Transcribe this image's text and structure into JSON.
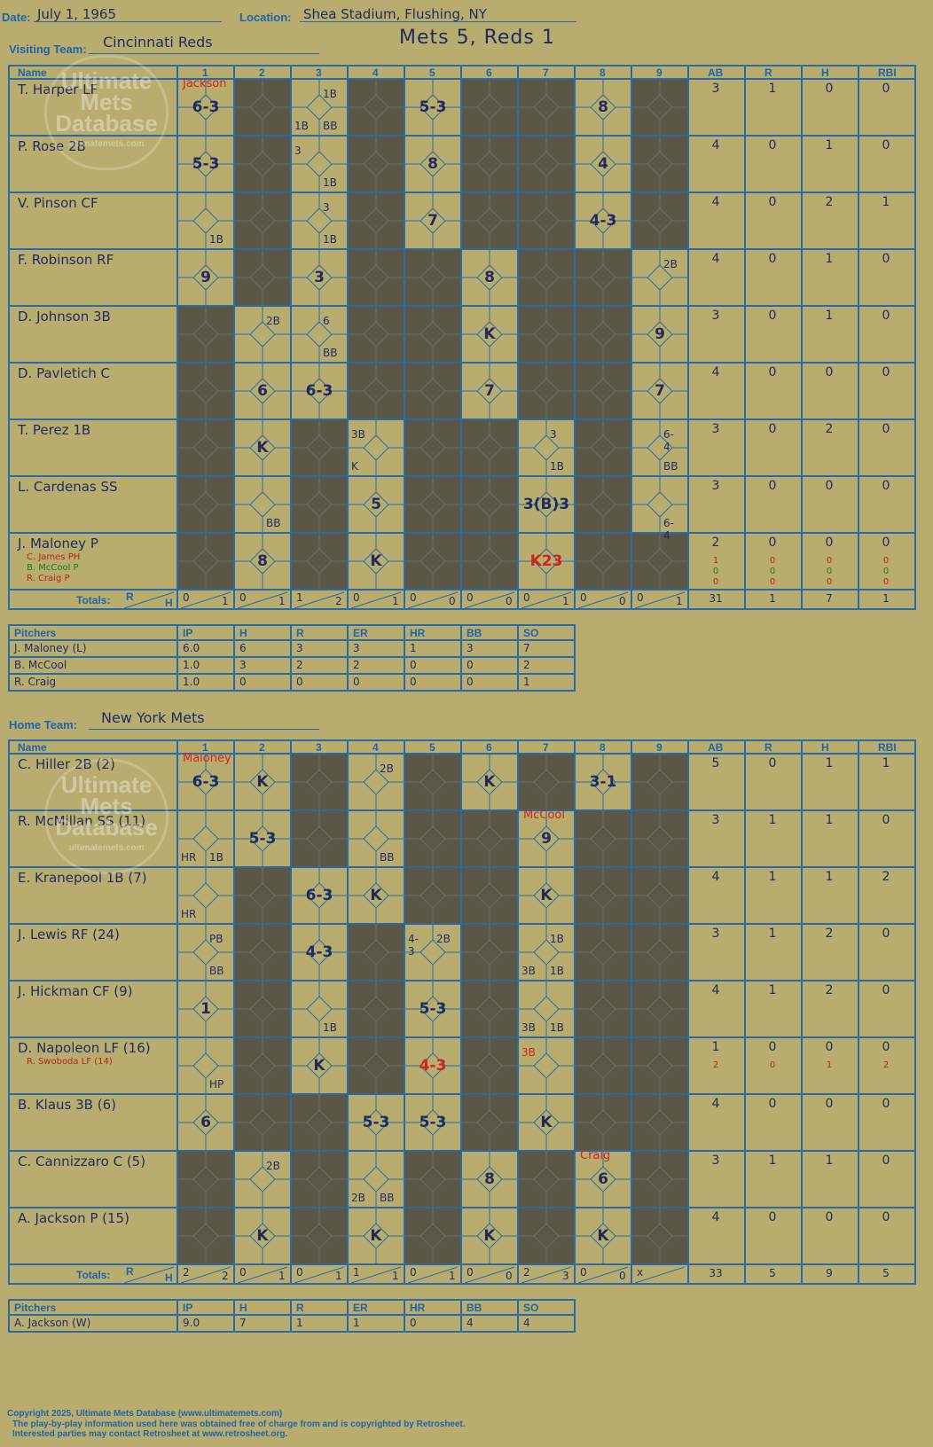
{
  "header": {
    "date_label": "Date:",
    "date": "July 1, 1965",
    "location_label": "Location:",
    "location": "Shea Stadium, Flushing, NY",
    "visiting_label": "Visiting Team:",
    "visiting_team": "Cincinnati Reds",
    "title": "Mets 5, Reds 1",
    "home_label": "Home Team:",
    "home_team": "New York Mets"
  },
  "watermark": {
    "line1": "Ultimate",
    "line2": "Mets",
    "line3": "Database",
    "url": "ultimatemets.com"
  },
  "columns": {
    "name": "Name",
    "innings": [
      "1",
      "2",
      "3",
      "4",
      "5",
      "6",
      "7",
      "8",
      "9"
    ],
    "stats": [
      "AB",
      "R",
      "H",
      "RBI"
    ],
    "totals": "Totals:",
    "r": "R",
    "h": "H"
  },
  "pitch_columns": [
    "Pitchers",
    "IP",
    "H",
    "R",
    "ER",
    "HR",
    "BB",
    "SO"
  ],
  "visitors": {
    "players": [
      {
        "name": "T. Harper LF",
        "stats": [
          "3",
          "1",
          "0",
          "0"
        ],
        "subs": []
      },
      {
        "name": "P. Rose 2B",
        "stats": [
          "4",
          "0",
          "1",
          "0"
        ],
        "subs": []
      },
      {
        "name": "V. Pinson CF",
        "stats": [
          "4",
          "0",
          "2",
          "1"
        ],
        "subs": []
      },
      {
        "name": "F. Robinson RF",
        "stats": [
          "4",
          "0",
          "1",
          "0"
        ],
        "subs": []
      },
      {
        "name": "D. Johnson 3B",
        "stats": [
          "3",
          "0",
          "1",
          "0"
        ],
        "subs": []
      },
      {
        "name": "D. Pavletich C",
        "stats": [
          "4",
          "0",
          "0",
          "0"
        ],
        "subs": []
      },
      {
        "name": "T. Perez 1B",
        "stats": [
          "3",
          "0",
          "2",
          "0"
        ],
        "subs": []
      },
      {
        "name": "L. Cardenas SS",
        "stats": [
          "3",
          "0",
          "0",
          "0"
        ],
        "subs": []
      },
      {
        "name": "J. Maloney P",
        "stats": [
          "2",
          "0",
          "0",
          "0"
        ],
        "subs": [
          {
            "name": "C. James PH",
            "stats": [
              "1",
              "0",
              "0",
              "0"
            ],
            "color": "dkred"
          },
          {
            "name": "B. McCool P",
            "stats": [
              "0",
              "0",
              "0",
              "0"
            ],
            "color": "green"
          },
          {
            "name": "R. Craig P",
            "stats": [
              "0",
              "0",
              "0",
              "0"
            ],
            "color": "dkred"
          }
        ]
      }
    ],
    "plays": [
      [
        "6-3",
        "",
        "",
        "",
        "5-3",
        "",
        "",
        "8",
        ""
      ],
      [
        "5-3",
        "",
        "",
        "",
        "8",
        "",
        "",
        "4",
        ""
      ],
      [
        "",
        "",
        "",
        "",
        "7",
        "",
        "",
        "4-3",
        ""
      ],
      [
        "9",
        "",
        "3",
        "",
        "",
        "8",
        "",
        "",
        ""
      ],
      [
        "",
        "",
        "",
        "",
        "",
        "K",
        "",
        "",
        "9"
      ],
      [
        "",
        "6",
        "6-3",
        "",
        "",
        "7",
        "",
        "",
        "7"
      ],
      [
        "",
        "K",
        "",
        "",
        "",
        "",
        "",
        "",
        ""
      ],
      [
        "",
        "",
        "",
        "5",
        "",
        "",
        "3(B)3",
        "",
        ""
      ],
      [
        "",
        "8",
        "",
        "K",
        "",
        "",
        "K23",
        "",
        ""
      ]
    ],
    "notes": [
      {
        "row": 0,
        "col": 0,
        "text": "Jackson",
        "pos": "top",
        "color": "red"
      },
      {
        "row": 0,
        "col": 2,
        "text": "1B",
        "pos": "tr"
      },
      {
        "row": 0,
        "col": 2,
        "text": "1B",
        "pos": "bl"
      },
      {
        "row": 0,
        "col": 2,
        "text": "BB",
        "pos": "br"
      },
      {
        "row": 1,
        "col": 2,
        "text": "3",
        "pos": "tl"
      },
      {
        "row": 1,
        "col": 2,
        "text": "1B",
        "pos": "br"
      },
      {
        "row": 2,
        "col": 0,
        "text": "1B",
        "pos": "br"
      },
      {
        "row": 2,
        "col": 2,
        "text": "3",
        "pos": "tr"
      },
      {
        "row": 2,
        "col": 2,
        "text": "1B",
        "pos": "br"
      },
      {
        "row": 3,
        "col": 8,
        "text": "2B",
        "pos": "tr"
      },
      {
        "row": 4,
        "col": 1,
        "text": "2B",
        "pos": "tr"
      },
      {
        "row": 4,
        "col": 2,
        "text": "6",
        "pos": "tr"
      },
      {
        "row": 4,
        "col": 2,
        "text": "BB",
        "pos": "br"
      },
      {
        "row": 6,
        "col": 3,
        "text": "3B",
        "pos": "tl"
      },
      {
        "row": 6,
        "col": 3,
        "text": "K",
        "pos": "bl"
      },
      {
        "row": 6,
        "col": 6,
        "text": "3",
        "pos": "tr"
      },
      {
        "row": 6,
        "col": 6,
        "text": "1B",
        "pos": "br"
      },
      {
        "row": 6,
        "col": 8,
        "text": "6-4",
        "pos": "tr"
      },
      {
        "row": 6,
        "col": 8,
        "text": "BB",
        "pos": "br"
      },
      {
        "row": 7,
        "col": 1,
        "text": "BB",
        "pos": "br"
      },
      {
        "row": 7,
        "col": 8,
        "text": "6-4",
        "pos": "br"
      }
    ],
    "totals": [
      [
        "0",
        "1"
      ],
      [
        "0",
        "1"
      ],
      [
        "1",
        "2"
      ],
      [
        "0",
        "1"
      ],
      [
        "0",
        "0"
      ],
      [
        "0",
        "0"
      ],
      [
        "0",
        "1"
      ],
      [
        "0",
        "0"
      ],
      [
        "0",
        "1"
      ]
    ],
    "total_stats": [
      "31",
      "1",
      "7",
      "1"
    ],
    "pitchers": [
      [
        "J. Maloney (L)",
        "6.0",
        "6",
        "3",
        "3",
        "1",
        "3",
        "7"
      ],
      [
        "B. McCool",
        "1.0",
        "3",
        "2",
        "2",
        "0",
        "0",
        "2"
      ],
      [
        "R. Craig",
        "1.0",
        "0",
        "0",
        "0",
        "0",
        "0",
        "1"
      ]
    ]
  },
  "home": {
    "players": [
      {
        "name": "C. Hiller 2B (2)",
        "stats": [
          "5",
          "0",
          "1",
          "1"
        ],
        "subs": []
      },
      {
        "name": "R. McMillan SS (11)",
        "stats": [
          "3",
          "1",
          "1",
          "0"
        ],
        "subs": []
      },
      {
        "name": "E. Kranepool 1B (7)",
        "stats": [
          "4",
          "1",
          "1",
          "2"
        ],
        "subs": []
      },
      {
        "name": "J. Lewis RF (24)",
        "stats": [
          "3",
          "1",
          "2",
          "0"
        ],
        "subs": []
      },
      {
        "name": "J. Hickman CF (9)",
        "stats": [
          "4",
          "1",
          "2",
          "0"
        ],
        "subs": []
      },
      {
        "name": "D. Napoleon LF (16)",
        "stats": [
          "1",
          "0",
          "0",
          "0"
        ],
        "subs": [
          {
            "name": "R. Swoboda LF (14)",
            "stats": [
              "2",
              "0",
              "1",
              "2"
            ],
            "color": "dkred"
          }
        ]
      },
      {
        "name": "B. Klaus 3B (6)",
        "stats": [
          "4",
          "0",
          "0",
          "0"
        ],
        "subs": []
      },
      {
        "name": "C. Cannizzaro C (5)",
        "stats": [
          "3",
          "1",
          "1",
          "0"
        ],
        "subs": []
      },
      {
        "name": "A. Jackson P (15)",
        "stats": [
          "4",
          "0",
          "0",
          "0"
        ],
        "subs": []
      }
    ],
    "plays": [
      [
        "6-3",
        "K",
        "",
        "",
        "",
        "K",
        "",
        "3-1",
        ""
      ],
      [
        "",
        "5-3",
        "",
        "",
        "",
        "",
        "9",
        "",
        ""
      ],
      [
        "",
        "",
        "6-3",
        "K",
        "",
        "",
        "K",
        "",
        ""
      ],
      [
        "",
        "",
        "4-3",
        "",
        "",
        "",
        "",
        "",
        ""
      ],
      [
        "1",
        "",
        "",
        "",
        "5-3",
        "",
        "",
        "",
        ""
      ],
      [
        "",
        "",
        "K",
        "",
        "4-3",
        "",
        "",
        "",
        ""
      ],
      [
        "6",
        "",
        "",
        "5-3",
        "5-3",
        "",
        "K",
        "",
        ""
      ],
      [
        "",
        "",
        "",
        "",
        "",
        "8",
        "",
        "6",
        ""
      ],
      [
        "",
        "K",
        "",
        "K",
        "",
        "K",
        "",
        "K",
        ""
      ]
    ],
    "notes": [
      {
        "row": 0,
        "col": 0,
        "text": "Maloney",
        "pos": "top",
        "color": "red"
      },
      {
        "row": 0,
        "col": 3,
        "text": "2B",
        "pos": "tr"
      },
      {
        "row": 1,
        "col": 0,
        "text": "HR",
        "pos": "bl"
      },
      {
        "row": 1,
        "col": 0,
        "text": "1B",
        "pos": "br"
      },
      {
        "row": 1,
        "col": 3,
        "text": "BB",
        "pos": "br"
      },
      {
        "row": 1,
        "col": 6,
        "text": "McCool",
        "pos": "top",
        "color": "red"
      },
      {
        "row": 2,
        "col": 0,
        "text": "HR",
        "pos": "bl"
      },
      {
        "row": 3,
        "col": 0,
        "text": "PB",
        "pos": "tr"
      },
      {
        "row": 3,
        "col": 0,
        "text": "BB",
        "pos": "br"
      },
      {
        "row": 3,
        "col": 4,
        "text": "4-3",
        "pos": "tl"
      },
      {
        "row": 3,
        "col": 4,
        "text": "2B",
        "pos": "tr"
      },
      {
        "row": 3,
        "col": 6,
        "text": "1B",
        "pos": "tr"
      },
      {
        "row": 3,
        "col": 6,
        "text": "3B",
        "pos": "bl"
      },
      {
        "row": 3,
        "col": 6,
        "text": "1B",
        "pos": "br"
      },
      {
        "row": 4,
        "col": 2,
        "text": "1B",
        "pos": "br"
      },
      {
        "row": 4,
        "col": 6,
        "text": "3B",
        "pos": "bl"
      },
      {
        "row": 4,
        "col": 6,
        "text": "1B",
        "pos": "br"
      },
      {
        "row": 5,
        "col": 0,
        "text": "HP",
        "pos": "br"
      },
      {
        "row": 5,
        "col": 6,
        "text": "3B",
        "pos": "tl",
        "color": "red"
      },
      {
        "row": 7,
        "col": 1,
        "text": "2B",
        "pos": "tr"
      },
      {
        "row": 7,
        "col": 3,
        "text": "2B",
        "pos": "bl"
      },
      {
        "row": 7,
        "col": 3,
        "text": "BB",
        "pos": "br"
      },
      {
        "row": 7,
        "col": 7,
        "text": "Craig",
        "pos": "top",
        "color": "red"
      }
    ],
    "totals": [
      [
        "2",
        "2"
      ],
      [
        "0",
        "1"
      ],
      [
        "0",
        "1"
      ],
      [
        "1",
        "1"
      ],
      [
        "0",
        "1"
      ],
      [
        "0",
        "0"
      ],
      [
        "2",
        "3"
      ],
      [
        "0",
        "0"
      ],
      [
        "x",
        ""
      ]
    ],
    "total_stats": [
      "33",
      "5",
      "9",
      "5"
    ],
    "pitchers": [
      [
        "A. Jackson (W)",
        "9.0",
        "7",
        "1",
        "1",
        "0",
        "4",
        "4"
      ]
    ]
  },
  "copyright": {
    "line1": "Copyright 2025, Ultimate Mets Database (www.ultimatemets.com)",
    "line2": "The play-by-play information used here was obtained free of charge from and is copyrighted by Retrosheet.",
    "line3": "Interested parties may contact Retrosheet at www.retrosheet.org."
  },
  "colors": {
    "background": "#b8ad6f",
    "grid": "#2a6aa6",
    "inactive": "#5b5747",
    "ink": "#1e2b5e",
    "red_ink": "#d2231f"
  }
}
